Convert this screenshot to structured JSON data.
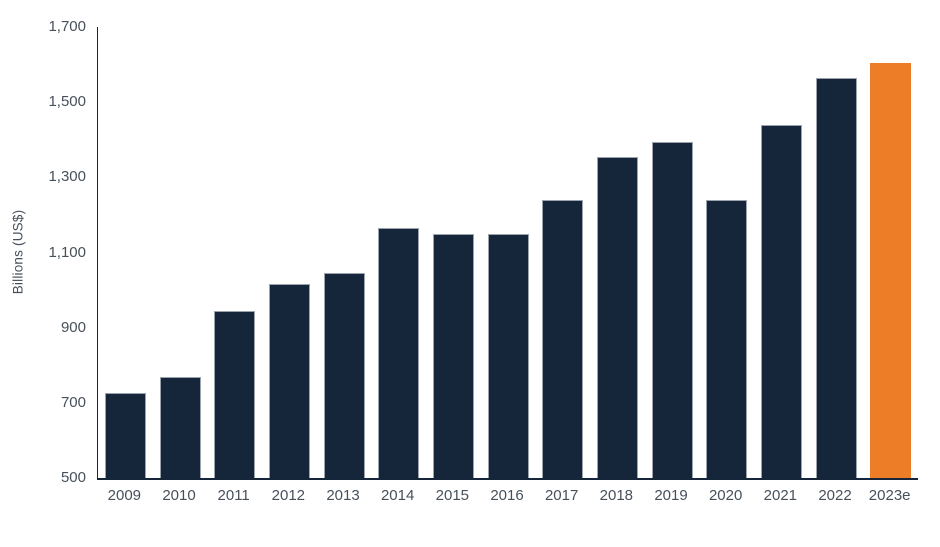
{
  "chart_data": {
    "type": "bar",
    "title": "",
    "xlabel": "",
    "ylabel": "Billions (US$)",
    "categories": [
      "2009",
      "2010",
      "2011",
      "2012",
      "2013",
      "2014",
      "2015",
      "2016",
      "2017",
      "2018",
      "2019",
      "2020",
      "2021",
      "2022",
      "2023e"
    ],
    "values": [
      725,
      770,
      945,
      1015,
      1045,
      1165,
      1150,
      1150,
      1240,
      1355,
      1395,
      1240,
      1440,
      1565,
      1605
    ],
    "ylim": [
      500,
      1700
    ],
    "yticks": [
      500,
      700,
      900,
      1100,
      1300,
      1500,
      1700
    ],
    "ytick_labels": [
      "500",
      "700",
      "900",
      "1,100",
      "1,300",
      "1,500",
      "1,700"
    ],
    "grid": false,
    "legend_position": "none",
    "bar_color": "#16263A",
    "highlight_color": "#ED7D26",
    "highlight_index": 14,
    "axis_color": "#16263A",
    "label_color": "#47505A"
  }
}
